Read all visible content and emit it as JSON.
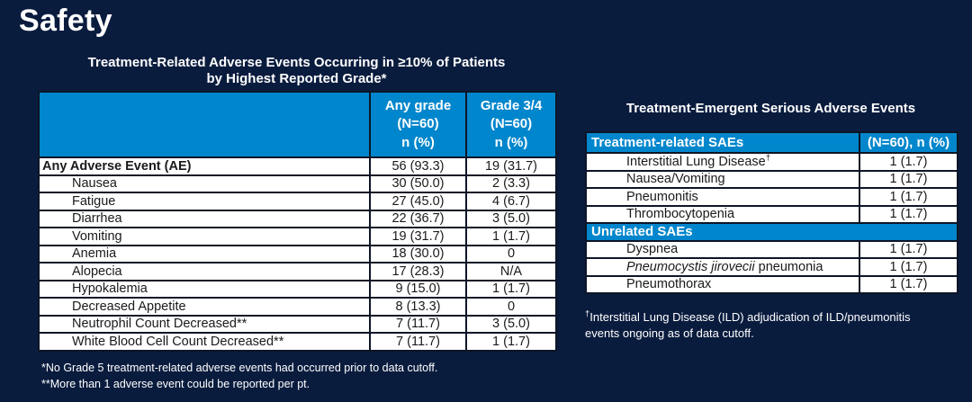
{
  "colors": {
    "background": "#0A1C3E",
    "table_header_blue": "#0086CC",
    "cell_background": "#FFFFFF",
    "body_text": "#1A1A1A",
    "light_text": "#FFFFFF",
    "border": "#0D1526"
  },
  "page": {
    "title": "Safety"
  },
  "left_table": {
    "title_line1": "Treatment-Related Adverse Events Occurring in ≥10% of Patients",
    "title_line2": "by Highest Reported Grade*",
    "col2_header": {
      "l1": "Any grade",
      "l2": "(N=60)",
      "l3": "n (%)"
    },
    "col3_header": {
      "l1": "Grade 3/4",
      "l2": "(N=60)",
      "l3": "n (%)"
    },
    "rows": [
      {
        "label": "Any Adverse Event (AE)",
        "bold": true,
        "any_grade": "56 (93.3)",
        "grade_3_4": "19 (31.7)"
      },
      {
        "label": "Nausea",
        "any_grade": "30 (50.0)",
        "grade_3_4": "2 (3.3)"
      },
      {
        "label": "Fatigue",
        "any_grade": "27 (45.0)",
        "grade_3_4": "4 (6.7)"
      },
      {
        "label": "Diarrhea",
        "any_grade": "22 (36.7)",
        "grade_3_4": "3 (5.0)"
      },
      {
        "label": "Vomiting",
        "any_grade": "19 (31.7)",
        "grade_3_4": "1 (1.7)"
      },
      {
        "label": "Anemia",
        "any_grade": "18 (30.0)",
        "grade_3_4": "0"
      },
      {
        "label": "Alopecia",
        "any_grade": "17 (28.3)",
        "grade_3_4": "N/A"
      },
      {
        "label": "Hypokalemia",
        "any_grade": "9 (15.0)",
        "grade_3_4": "1 (1.7)"
      },
      {
        "label": "Decreased Appetite",
        "any_grade": "8 (13.3)",
        "grade_3_4": "0"
      },
      {
        "label": "Neutrophil Count Decreased**",
        "any_grade": "7 (11.7)",
        "grade_3_4": "3 (5.0)"
      },
      {
        "label": "White Blood Cell Count Decreased**",
        "any_grade": "7 (11.7)",
        "grade_3_4": "1 (1.7)"
      }
    ],
    "footnote1": "*No Grade 5 treatment-related adverse events had occurred prior to data cutoff.",
    "footnote2": "**More than 1 adverse event could be reported per pt."
  },
  "right_table": {
    "title": "Treatment-Emergent Serious Adverse Events",
    "header_label": "Treatment-related SAEs",
    "header_value": "(N=60), n (%)",
    "rows": [
      {
        "label": "Interstitial Lung Disease",
        "sup": "†",
        "value": "1 (1.7)"
      },
      {
        "label": "Nausea/Vomiting",
        "value": "1 (1.7)"
      },
      {
        "label": "Pneumonitis",
        "value": "1 (1.7)"
      },
      {
        "label": "Thrombocytopenia",
        "value": "1 (1.7)"
      },
      {
        "section": "Unrelated SAEs"
      },
      {
        "label": "Dyspnea",
        "value": "1 (1.7)"
      },
      {
        "label_italic": "Pneumocystis jirovecii",
        "label": " pneumonia",
        "value": "1 (1.7)"
      },
      {
        "label": "Pneumothorax",
        "value": "1 (1.7)"
      }
    ],
    "footnote_sup": "†",
    "footnote": "Interstitial Lung Disease (ILD) adjudication of ILD/pneumonitis events ongoing as of data cutoff."
  }
}
